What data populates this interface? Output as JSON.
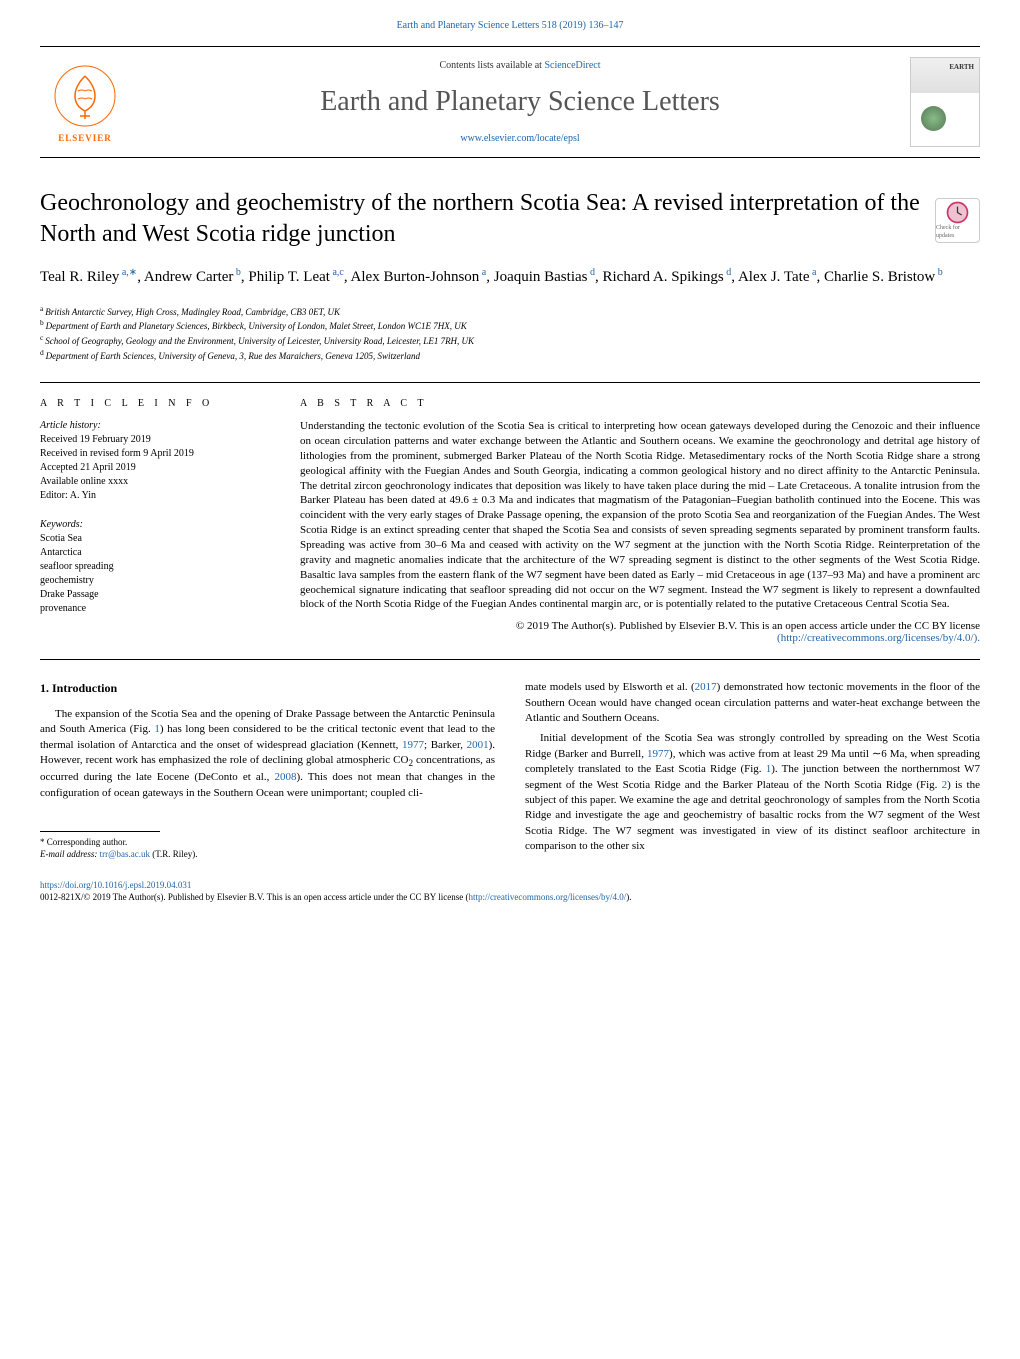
{
  "header": {
    "top_link": "Earth and Planetary Science Letters 518 (2019) 136–147",
    "contents_prefix": "Contents lists available at ",
    "contents_link": "ScienceDirect",
    "journal_title": "Earth and Planetary Science Letters",
    "journal_url": "www.elsevier.com/locate/epsl",
    "elsevier_label": "ELSEVIER"
  },
  "article": {
    "title": "Geochronology and geochemistry of the northern Scotia Sea: A revised interpretation of the North and West Scotia ridge junction",
    "check_updates_label": "Check for updates",
    "authors_html": "Teal R. Riley",
    "authors": [
      {
        "name": "Teal R. Riley",
        "sup": "a,∗"
      },
      {
        "name": "Andrew Carter",
        "sup": "b"
      },
      {
        "name": "Philip T. Leat",
        "sup": "a,c"
      },
      {
        "name": "Alex Burton-Johnson",
        "sup": "a"
      },
      {
        "name": "Joaquin Bastias",
        "sup": "d"
      },
      {
        "name": "Richard A. Spikings",
        "sup": "d"
      },
      {
        "name": "Alex J. Tate",
        "sup": "a"
      },
      {
        "name": "Charlie S. Bristow",
        "sup": "b"
      }
    ],
    "affiliations": [
      {
        "sup": "a",
        "text": "British Antarctic Survey, High Cross, Madingley Road, Cambridge, CB3 0ET, UK"
      },
      {
        "sup": "b",
        "text": "Department of Earth and Planetary Sciences, Birkbeck, University of London, Malet Street, London WC1E 7HX, UK"
      },
      {
        "sup": "c",
        "text": "School of Geography, Geology and the Environment, University of Leicester, University Road, Leicester, LE1 7RH, UK"
      },
      {
        "sup": "d",
        "text": "Department of Earth Sciences, University of Geneva, 3, Rue des Maraichers, Geneva 1205, Switzerland"
      }
    ]
  },
  "info": {
    "heading": "A R T I C L E   I N F O",
    "history_label": "Article history:",
    "received": "Received 19 February 2019",
    "received_revised": "Received in revised form 9 April 2019",
    "accepted": "Accepted 21 April 2019",
    "available": "Available online xxxx",
    "editor": "Editor: A. Yin",
    "keywords_label": "Keywords:",
    "keywords": [
      "Scotia Sea",
      "Antarctica",
      "seafloor spreading",
      "geochemistry",
      "Drake Passage",
      "provenance"
    ]
  },
  "abstract": {
    "heading": "A B S T R A C T",
    "text": "Understanding the tectonic evolution of the Scotia Sea is critical to interpreting how ocean gateways developed during the Cenozoic and their influence on ocean circulation patterns and water exchange between the Atlantic and Southern oceans. We examine the geochronology and detrital age history of lithologies from the prominent, submerged Barker Plateau of the North Scotia Ridge. Metasedimentary rocks of the North Scotia Ridge share a strong geological affinity with the Fuegian Andes and South Georgia, indicating a common geological history and no direct affinity to the Antarctic Peninsula. The detrital zircon geochronology indicates that deposition was likely to have taken place during the mid – Late Cretaceous. A tonalite intrusion from the Barker Plateau has been dated at 49.6 ± 0.3 Ma and indicates that magmatism of the Patagonian–Fuegian batholith continued into the Eocene. This was coincident with the very early stages of Drake Passage opening, the expansion of the proto Scotia Sea and reorganization of the Fuegian Andes. The West Scotia Ridge is an extinct spreading center that shaped the Scotia Sea and consists of seven spreading segments separated by prominent transform faults. Spreading was active from 30–6 Ma and ceased with activity on the W7 segment at the junction with the North Scotia Ridge. Reinterpretation of the gravity and magnetic anomalies indicate that the architecture of the W7 spreading segment is distinct to the other segments of the West Scotia Ridge. Basaltic lava samples from the eastern flank of the W7 segment have been dated as Early – mid Cretaceous in age (137–93 Ma) and have a prominent arc geochemical signature indicating that seafloor spreading did not occur on the W7 segment. Instead the W7 segment is likely to represent a downfaulted block of the North Scotia Ridge of the Fuegian Andes continental margin arc, or is potentially related to the putative Cretaceous Central Scotia Sea.",
    "license": "© 2019 The Author(s). Published by Elsevier B.V. This is an open access article under the CC BY license",
    "license_url": "(http://creativecommons.org/licenses/by/4.0/)."
  },
  "body": {
    "section_heading": "1. Introduction",
    "col1_p1_part1": "The expansion of the Scotia Sea and the opening of Drake Passage between the Antarctic Peninsula and South America (Fig. ",
    "col1_p1_fig1": "1",
    "col1_p1_part2": ") has long been considered to be the critical tectonic event that lead to the thermal isolation of Antarctica and the onset of widespread glaciation (Kennett, ",
    "col1_p1_ref1": "1977",
    "col1_p1_part3": "; Barker, ",
    "col1_p1_ref2": "2001",
    "col1_p1_part4": "). However, recent work has emphasized the role of declining global atmospheric CO",
    "col1_p1_sub": "2",
    "col1_p1_part5": " concentrations, as occurred during the late Eocene (DeConto et al., ",
    "col1_p1_ref3": "2008",
    "col1_p1_part6": "). This does not mean that changes in the configuration of ocean gateways in the Southern Ocean were unimportant; coupled cli-",
    "col2_p1_part1": "mate models used by Elsworth et al. (",
    "col2_p1_ref1": "2017",
    "col2_p1_part2": ") demonstrated how tectonic movements in the floor of the Southern Ocean would have changed ocean circulation patterns and water-heat exchange between the Atlantic and Southern Oceans.",
    "col2_p2_part1": "Initial development of the Scotia Sea was strongly controlled by spreading on the West Scotia Ridge (Barker and Burrell, ",
    "col2_p2_ref1": "1977",
    "col2_p2_part2": "), which was active from at least 29 Ma until ∼6 Ma, when spreading completely translated to the East Scotia Ridge (Fig. ",
    "col2_p2_fig1": "1",
    "col2_p2_part3": "). The junction between the northernmost W7 segment of the West Scotia Ridge and the Barker Plateau of the North Scotia Ridge (Fig. ",
    "col2_p2_fig2": "2",
    "col2_p2_part4": ") is the subject of this paper. We examine the age and detrital geochronology of samples from the North Scotia Ridge and investigate the age and geochemistry of basaltic rocks from the W7 segment of the West Scotia Ridge. The W7 segment was investigated in view of its distinct seafloor architecture in comparison to the other six"
  },
  "footnote": {
    "corresponding": "Corresponding author.",
    "email_label": "E-mail address:",
    "email": "trr@bas.ac.uk",
    "email_name": "(T.R. Riley)."
  },
  "bottom": {
    "doi": "https://doi.org/10.1016/j.epsl.2019.04.031",
    "copyright": "0012-821X/© 2019 The Author(s). Published by Elsevier B.V. This is an open access article under the CC BY license (",
    "copyright_url": "http://creativecommons.org/licenses/by/4.0/",
    "copyright_end": ")."
  },
  "colors": {
    "link": "#2266aa",
    "elsevier_orange": "#ff6600",
    "text": "#000000"
  }
}
